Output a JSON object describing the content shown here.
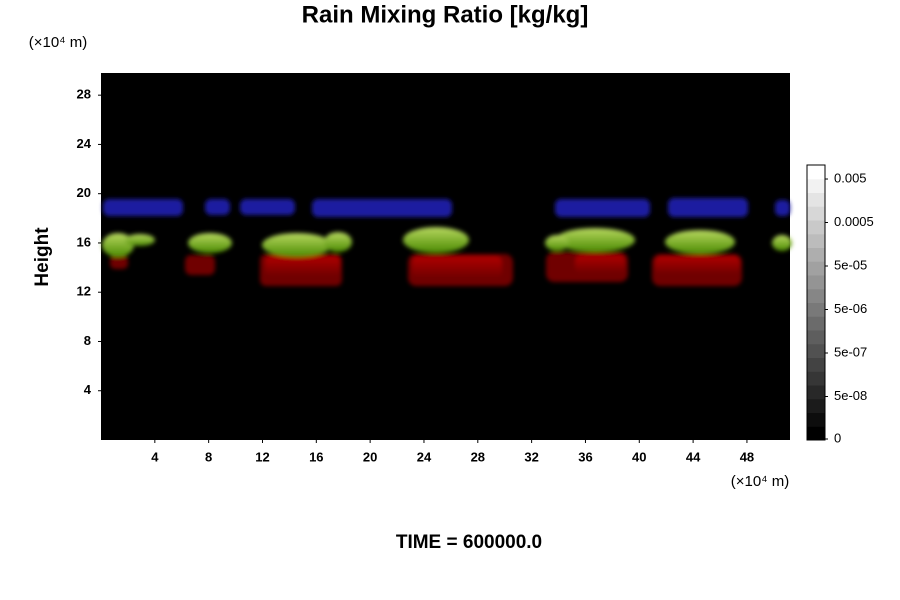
{
  "chart_data": {
    "type": "contour",
    "title": "Rain Mixing Ratio [kg/kg]",
    "y_label": "Height",
    "y_unit": "(×10⁴ m)",
    "x_unit": "(×10⁴ m)",
    "footer": "TIME = 600000.0",
    "xlim": [
      0,
      51.2
    ],
    "xticks": [
      4,
      8,
      12,
      16,
      20,
      24,
      28,
      32,
      36,
      40,
      44,
      48
    ],
    "ylim": [
      0,
      29.8
    ],
    "yticks": [
      4,
      8,
      12,
      16,
      20,
      24,
      28
    ],
    "colorbar": {
      "log_scale": true,
      "clim": [
        5e-09,
        0.0105
      ],
      "ticks": [
        0,
        {
          "value": 5e-08,
          "label": "5e-08"
        },
        {
          "value": 5e-07,
          "label": "5e-07"
        },
        {
          "value": 5e-06,
          "label": "5e-06"
        },
        {
          "value": 5e-05,
          "label": "5e-05"
        },
        0.0005,
        0.005
      ]
    }
  }
}
